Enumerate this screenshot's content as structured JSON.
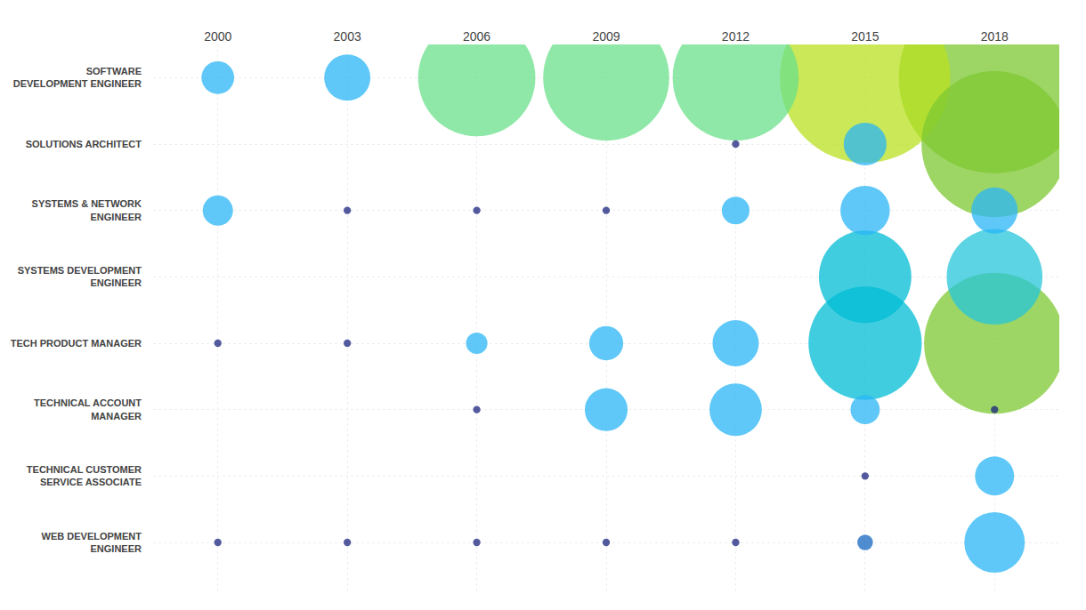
{
  "chart_data": {
    "type": "bubble",
    "categories": [
      2000,
      2003,
      2006,
      2009,
      2012,
      2015,
      2018
    ],
    "y_categories": [
      "SOFTWARE\nDEVELOPMENT ENGINEER",
      "SOLUTIONS ARCHITECT",
      "SYSTEMS & NETWORK\nENGINEER",
      "SYSTEMS DEVELOPMENT\nENGINEER",
      "TECH PRODUCT MANAGER",
      "TECHNICAL ACCOUNT\nMANAGER",
      "TECHNICAL CUSTOMER\nSERVICE ASSOCIATE",
      "WEB DEVELOPMENT\nENGINEER"
    ],
    "x": [
      2018,
      2015,
      2018,
      2018,
      2009,
      2012,
      2006,
      2015,
      2018,
      2015,
      2018,
      2012,
      2015,
      2003,
      2018,
      2012,
      2015,
      2009,
      2018,
      2009,
      2000,
      2000,
      2015,
      2012,
      2006,
      2015,
      2012,
      2003,
      2006,
      2009,
      2000,
      2003,
      2006,
      2018,
      2015,
      2000,
      2003,
      2006,
      2009,
      2012
    ],
    "y": [
      "SOFTWARE\nDEVELOPMENT ENGINEER",
      "SOFTWARE\nDEVELOPMENT ENGINEER",
      "SOLUTIONS ARCHITECT",
      "TECH PRODUCT MANAGER",
      "SOFTWARE\nDEVELOPMENT ENGINEER",
      "SOFTWARE\nDEVELOPMENT ENGINEER",
      "SOFTWARE\nDEVELOPMENT ENGINEER",
      "TECH PRODUCT MANAGER",
      "SYSTEMS DEVELOPMENT\nENGINEER",
      "SYSTEMS DEVELOPMENT\nENGINEER",
      "WEB DEVELOPMENT\nENGINEER",
      "TECHNICAL ACCOUNT\nMANAGER",
      "SYSTEMS & NETWORK\nENGINEER",
      "SOFTWARE\nDEVELOPMENT ENGINEER",
      "SYSTEMS & NETWORK\nENGINEER",
      "TECH PRODUCT MANAGER",
      "SOLUTIONS ARCHITECT",
      "TECHNICAL ACCOUNT\nMANAGER",
      "TECHNICAL CUSTOMER\nSERVICE ASSOCIATE",
      "TECH PRODUCT MANAGER",
      "SOFTWARE\nDEVELOPMENT ENGINEER",
      "SYSTEMS & NETWORK\nENGINEER",
      "TECHNICAL ACCOUNT\nMANAGER",
      "SYSTEMS & NETWORK\nENGINEER",
      "TECH PRODUCT MANAGER",
      "WEB DEVELOPMENT\nENGINEER",
      "SOLUTIONS ARCHITECT",
      "SYSTEMS & NETWORK\nENGINEER",
      "SYSTEMS & NETWORK\nENGINEER",
      "SYSTEMS & NETWORK\nENGINEER",
      "TECH PRODUCT MANAGER",
      "TECH PRODUCT MANAGER",
      "TECHNICAL ACCOUNT\nMANAGER",
      "TECHNICAL ACCOUNT\nMANAGER",
      "TECHNICAL CUSTOMER\nSERVICE ASSOCIATE",
      "WEB DEVELOPMENT\nENGINEER",
      "WEB DEVELOPMENT\nENGINEER",
      "WEB DEVELOPMENT\nENGINEER",
      "WEB DEVELOPMENT\nENGINEER",
      "WEB DEVELOPMENT\nENGINEER"
    ],
    "sizes": [
      12000,
      9500,
      7000,
      6500,
      5200,
      5200,
      4500,
      4200,
      3000,
      2800,
      1200,
      900,
      800,
      700,
      700,
      700,
      600,
      600,
      500,
      380,
      350,
      300,
      280,
      250,
      150,
      80,
      18,
      18,
      18,
      18,
      18,
      18,
      18,
      18,
      18,
      18,
      18,
      18,
      18,
      18
    ],
    "colors": [
      "#7DC832",
      "#B8E020",
      "#7DC832",
      "#7DC832",
      "#69E08A",
      "#69E08A",
      "#69E08A",
      "#00BCD4",
      "#26C6DA",
      "#00BCD4",
      "#29B6F6",
      "#29B6F6",
      "#29B6F6",
      "#29B6F6",
      "#29B6F6",
      "#29B6F6",
      "#29B6F6",
      "#29B6F6",
      "#29B6F6",
      "#29B6F6",
      "#29B6F6",
      "#29B6F6",
      "#29B6F6",
      "#29B6F6",
      "#29B6F6",
      "#1565C0",
      "#1A237E",
      "#1A237E",
      "#1A237E",
      "#1A237E",
      "#1A237E",
      "#1A237E",
      "#1A237E",
      "#1A237E",
      "#1A237E",
      "#1A237E",
      "#1A237E",
      "#1A237E",
      "#1A237E",
      "#1A237E"
    ],
    "grid": true
  }
}
